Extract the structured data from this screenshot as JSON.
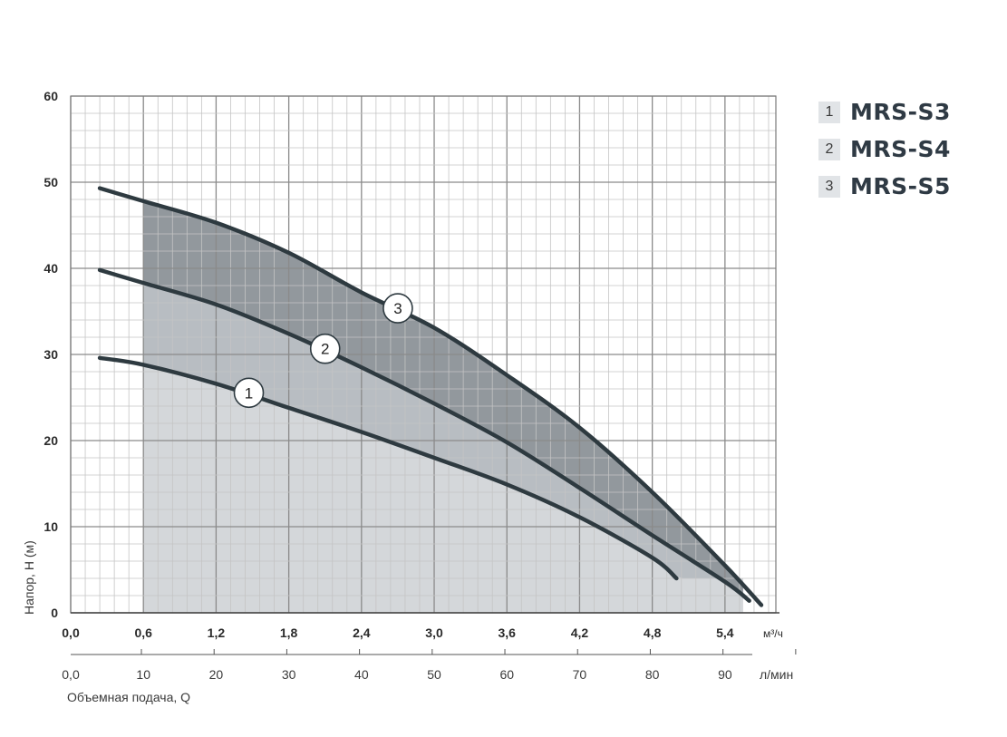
{
  "chart_data": {
    "type": "line",
    "title": "",
    "xlabel": "Объемная подача, Q",
    "ylabel": "Напор, H (м)",
    "x_unit": "м³/ч",
    "x2_unit": "л/мин",
    "xlim": [
      0,
      5.82
    ],
    "ylim": [
      0,
      60
    ],
    "x_ticks": [
      "0,0",
      "0,6",
      "1,2",
      "1,8",
      "2,4",
      "3,0",
      "3,6",
      "4,2",
      "4,8",
      "5,4"
    ],
    "x2_ticks": [
      "0,0",
      "10",
      "20",
      "30",
      "40",
      "50",
      "60",
      "70",
      "80",
      "90"
    ],
    "y_ticks": [
      "0",
      "10",
      "20",
      "30",
      "40",
      "50",
      "60"
    ],
    "grid": true,
    "legend_position": "right",
    "series": [
      {
        "name": "MRS-S3",
        "marker": "1",
        "x": [
          0.24,
          0.6,
          1.2,
          1.8,
          2.4,
          3.0,
          3.6,
          4.2,
          4.8,
          5.0
        ],
        "y": [
          29.6,
          28.8,
          26.6,
          23.8,
          21.0,
          18.0,
          14.9,
          11.1,
          6.4,
          4.0
        ]
      },
      {
        "name": "MRS-S4",
        "marker": "2",
        "x": [
          0.24,
          0.6,
          1.2,
          1.8,
          2.4,
          3.0,
          3.6,
          4.2,
          4.8,
          5.4,
          5.6
        ],
        "y": [
          39.8,
          38.3,
          35.8,
          32.4,
          28.5,
          24.3,
          19.8,
          14.5,
          9.0,
          3.6,
          1.4
        ]
      },
      {
        "name": "MRS-S5",
        "marker": "3",
        "x": [
          0.24,
          0.6,
          1.2,
          1.8,
          2.4,
          3.0,
          3.6,
          4.2,
          4.8,
          5.4,
          5.7
        ],
        "y": [
          49.3,
          47.8,
          45.3,
          41.8,
          37.2,
          33.1,
          27.6,
          21.5,
          14.0,
          5.5,
          0.9
        ]
      }
    ],
    "shaded_range_x": [
      0.6,
      5.55
    ],
    "colors": {
      "band1": "#d4d7da",
      "band2": "#b8bdc2",
      "band3": "#92989d",
      "curve": "#2e3a40",
      "grid_major": "#8a8a8a",
      "grid_minor": "#c4c4c4"
    }
  },
  "legend": {
    "items": [
      {
        "num": "1",
        "label": "MRS-S3"
      },
      {
        "num": "2",
        "label": "MRS-S4"
      },
      {
        "num": "3",
        "label": "MRS-S5"
      }
    ]
  }
}
